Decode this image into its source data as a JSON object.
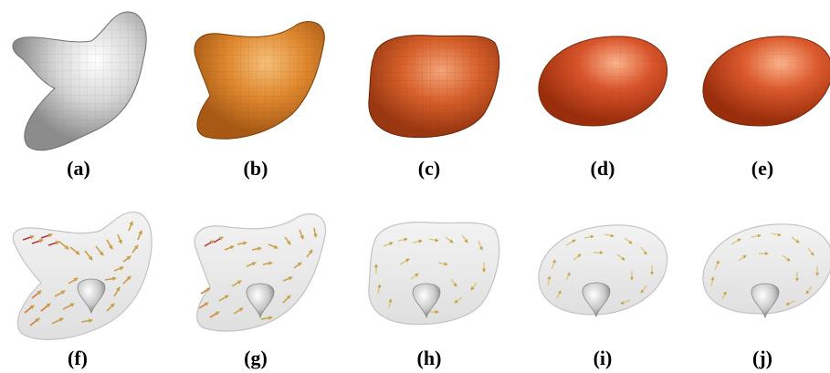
{
  "figure": {
    "top_row": [
      {
        "id": "a",
        "label": "(a)",
        "color": "#d6d6d6"
      },
      {
        "id": "b",
        "label": "(b)",
        "color": "#e0892f"
      },
      {
        "id": "c",
        "label": "(c)",
        "color": "#d7602a"
      },
      {
        "id": "d",
        "label": "(d)",
        "color": "#d9542a"
      },
      {
        "id": "e",
        "label": "(e)",
        "color": "#dc5a2d"
      }
    ],
    "bottom_row": [
      {
        "id": "f",
        "label": "(f)"
      },
      {
        "id": "g",
        "label": "(g)"
      },
      {
        "id": "h",
        "label": "(h)"
      },
      {
        "id": "i",
        "label": "(i)"
      },
      {
        "id": "j",
        "label": "(j)"
      }
    ],
    "arrow_colors": {
      "warm": "#c9a04a",
      "hot": "#b23a3a",
      "pale": "#e8e2b8"
    }
  }
}
